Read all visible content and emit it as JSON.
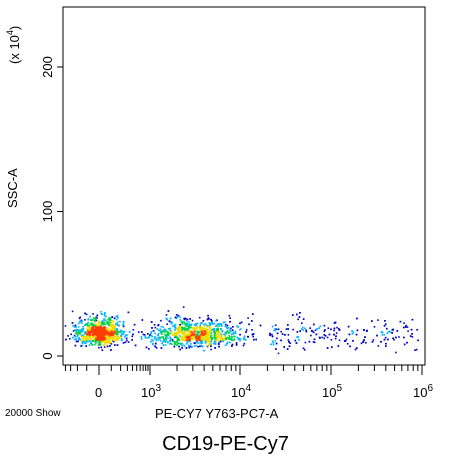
{
  "chart_data": {
    "type": "scatter",
    "title": "CD19-PE-Cy7",
    "xlabel": "PE-CY7 Y763-PC7-A",
    "ylabel": "SSC-A",
    "y_scale_label": "(x 10",
    "y_scale_exponent": "4",
    "event_count_label": "20000 Show",
    "x_scale": "biexponential",
    "x_ticks": [
      {
        "value": 0,
        "base": "0",
        "exp": ""
      },
      {
        "value": 1000,
        "base": "10",
        "exp": "3"
      },
      {
        "value": 10000,
        "base": "10",
        "exp": "4"
      },
      {
        "value": 100000,
        "base": "10",
        "exp": "5"
      },
      {
        "value": 1000000,
        "base": "10",
        "exp": "6"
      }
    ],
    "y_ticks": [
      {
        "value": 0,
        "label": "0"
      },
      {
        "value": 100,
        "label": "100"
      },
      {
        "value": 200,
        "label": "200"
      }
    ],
    "ylim": [
      -3,
      240
    ],
    "events_shown": 20000,
    "populations": [
      {
        "name": "negative",
        "x_center": 0,
        "y_center": 12,
        "share": 0.42
      },
      {
        "name": "positive",
        "x_center": 3000,
        "y_center": 11,
        "share": 0.48
      },
      {
        "name": "tail",
        "x_range": [
          20000,
          900000
        ],
        "y_center": 15,
        "share": 0.1
      }
    ],
    "density_colors": [
      "#0000c8",
      "#00b4ff",
      "#00d24b",
      "#f0dc00",
      "#ff3c00"
    ],
    "grid": false
  }
}
